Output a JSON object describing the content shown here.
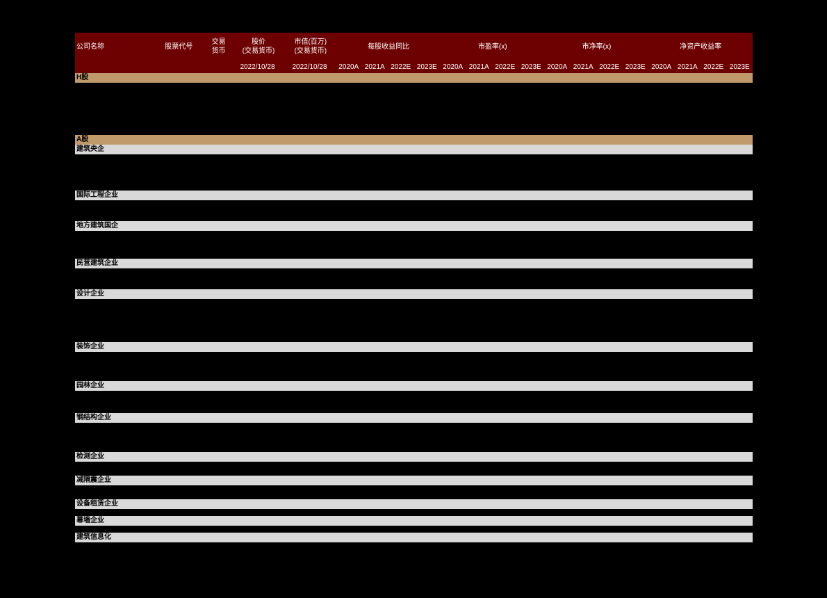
{
  "background_color": "#000000",
  "header": {
    "bg_color": "#6d0000",
    "text_color": "#ffffff",
    "font_size": 10,
    "row1": {
      "company_name": "公司名称",
      "ticker": "股票代号",
      "currency": "交易\n货币",
      "price": "股价\n(交易货币)",
      "mktcap": "市值(百万)\n(交易货币)",
      "eps_growth": "每股收益同比",
      "pe": "市盈率(x)",
      "pb": "市净率(x)",
      "roe": "净资产收益率"
    },
    "row2": {
      "date1": "2022/10/28",
      "date2": "2022/10/28",
      "years": [
        "2020A",
        "2021A",
        "2022E",
        "2023E",
        "2020A",
        "2021A",
        "2022E",
        "2023E",
        "2020A",
        "2021A",
        "2022E",
        "2023E",
        "2020A",
        "2021A",
        "2022E",
        "2023E"
      ]
    },
    "col_widths": {
      "company_name": 110,
      "ticker": 75,
      "currency": 40,
      "price": 75,
      "mktcap": 75,
      "year_col": 37,
      "group4": 150
    }
  },
  "sections": [
    {
      "label": "H股",
      "bg": "#c19a6b",
      "text": "#000000",
      "spacer_after": 75
    },
    {
      "label": "A股",
      "bg": "#c19a6b",
      "text": "#000000",
      "spacer_after": 0
    },
    {
      "label": "建筑央企",
      "bg": "#d9d9d9",
      "text": "#000000",
      "spacer_after": 52
    },
    {
      "label": "国际工程企业",
      "bg": "#d9d9d9",
      "text": "#000000",
      "spacer_after": 30
    },
    {
      "label": "地方建筑国企",
      "bg": "#d9d9d9",
      "text": "#000000",
      "spacer_after": 40
    },
    {
      "label": "民营建筑企业",
      "bg": "#d9d9d9",
      "text": "#000000",
      "spacer_after": 30
    },
    {
      "label": "设计企业",
      "bg": "#d9d9d9",
      "text": "#000000",
      "spacer_after": 62
    },
    {
      "label": "装饰企业",
      "bg": "#d9d9d9",
      "text": "#000000",
      "spacer_after": 42
    },
    {
      "label": "园林企业",
      "bg": "#d9d9d9",
      "text": "#000000",
      "spacer_after": 32
    },
    {
      "label": "钢结构企业",
      "bg": "#d9d9d9",
      "text": "#000000",
      "spacer_after": 42
    },
    {
      "label": "检测企业",
      "bg": "#d9d9d9",
      "text": "#000000",
      "spacer_after": 20
    },
    {
      "label": "减隔震企业",
      "bg": "#d9d9d9",
      "text": "#000000",
      "spacer_after": 20
    },
    {
      "label": "设备租赁企业",
      "bg": "#d9d9d9",
      "text": "#000000",
      "spacer_after": 10
    },
    {
      "label": "幕墙企业",
      "bg": "#d9d9d9",
      "text": "#000000",
      "spacer_after": 10
    },
    {
      "label": "建筑信息化",
      "bg": "#d9d9d9",
      "text": "#000000",
      "spacer_after": 80
    }
  ]
}
